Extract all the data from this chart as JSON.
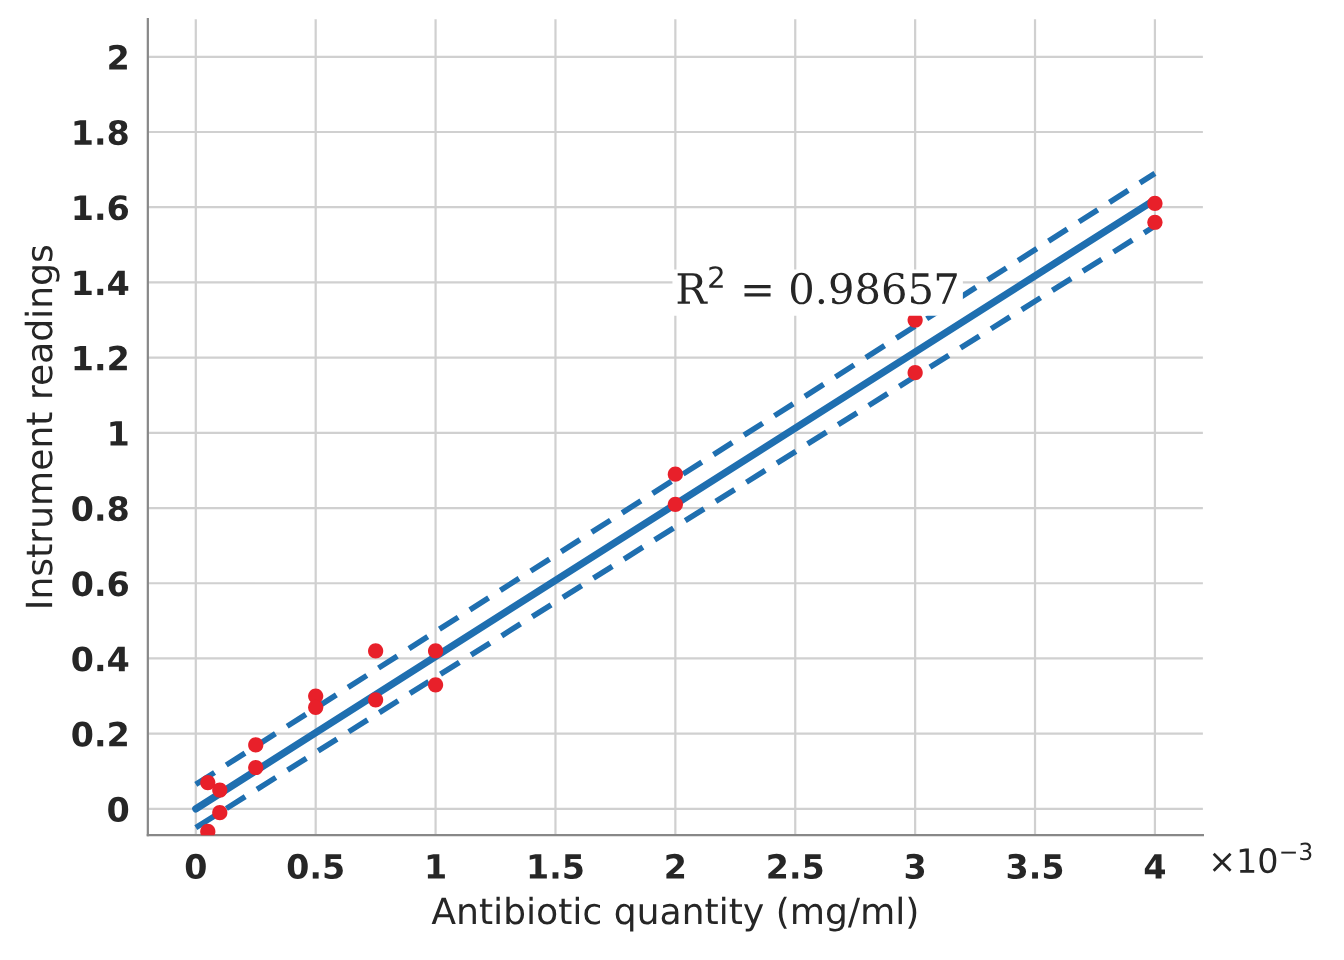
{
  "chart_data": {
    "type": "scatter",
    "xlabel": "Antibiotic quantity (mg/ml)",
    "ylabel": "Instrument readings",
    "annotations": [
      "R$^{2}$ = 0.98657",
      "×10$^{−3}$"
    ],
    "series": [
      {
        "color": "#e8202a",
        "marker": "circle",
        "x": [
          0.05,
          0.05,
          0.1,
          0.1,
          0.25,
          0.25,
          0.5,
          0.5,
          0.75,
          0.75,
          1,
          1,
          2,
          2,
          3,
          3,
          4,
          4
        ],
        "values": [
          0.07,
          -0.06,
          0.05,
          -0.01,
          0.17,
          0.11,
          0.3,
          0.27,
          0.42,
          0.29,
          0.42,
          0.33,
          0.89,
          0.81,
          1.3,
          1.16,
          1.61,
          1.56
        ]
      },
      {
        "type": "line",
        "color": "#1f6fb0",
        "line_style": "solid",
        "x": [
          0,
          4
        ],
        "values": [
          0.0,
          1.62
        ]
      },
      {
        "type": "line",
        "color": "#1f6fb0",
        "line_style": "dashed",
        "x": [
          0,
          4
        ],
        "values": [
          0.065,
          1.69
        ]
      },
      {
        "type": "line",
        "color": "#1f6fb0",
        "line_style": "dashed",
        "x": [
          0,
          4
        ],
        "values": [
          -0.05,
          1.55
        ]
      }
    ],
    "xlim": [
      -0.2,
      4.2
    ],
    "ylim": [
      -0.07,
      2.1
    ],
    "xticks": [
      0,
      0.5,
      1,
      1.5,
      2,
      2.5,
      3,
      3.5,
      4
    ],
    "yticks": [
      0,
      0.2,
      0.4,
      0.6,
      0.8,
      1,
      1.2,
      1.4,
      1.6,
      1.8,
      2
    ],
    "grid": true,
    "legend": false
  }
}
